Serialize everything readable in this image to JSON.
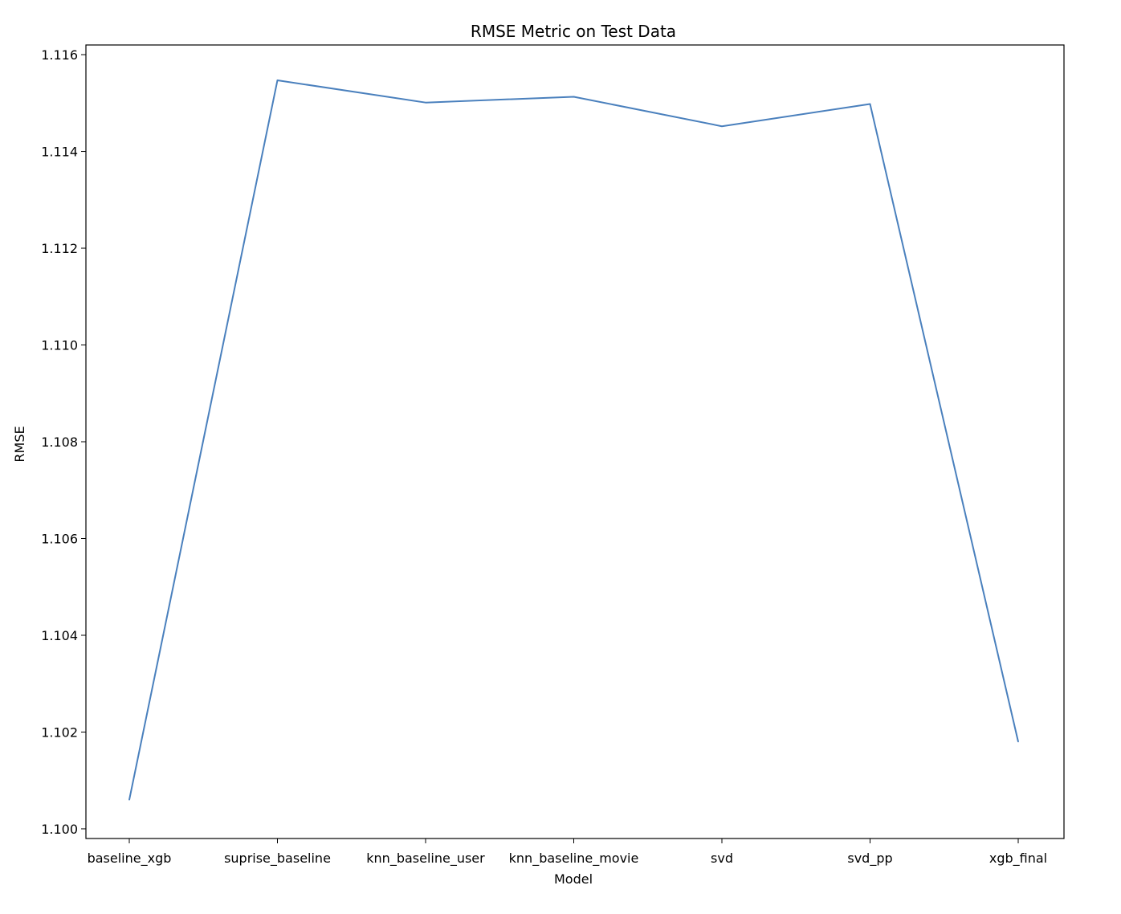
{
  "chart_data": {
    "type": "line",
    "title": "RMSE Metric on Test Data",
    "xlabel": "Model",
    "ylabel": "RMSE",
    "categories": [
      "baseline_xgb",
      "suprise_baseline",
      "knn_baseline_user",
      "knn_baseline_movie",
      "svd",
      "svd_pp",
      "xgb_final"
    ],
    "series": [
      {
        "values": [
          1.1006,
          1.11547,
          1.11501,
          1.11513,
          1.11452,
          1.11498,
          1.1018
        ],
        "color": "#4a80bd"
      }
    ],
    "ylim": [
      1.0998,
      1.1162
    ],
    "yticks": [
      "1.100",
      "1.102",
      "1.104",
      "1.106",
      "1.108",
      "1.110",
      "1.112",
      "1.114",
      "1.116"
    ],
    "grid": false,
    "legend": false
  }
}
